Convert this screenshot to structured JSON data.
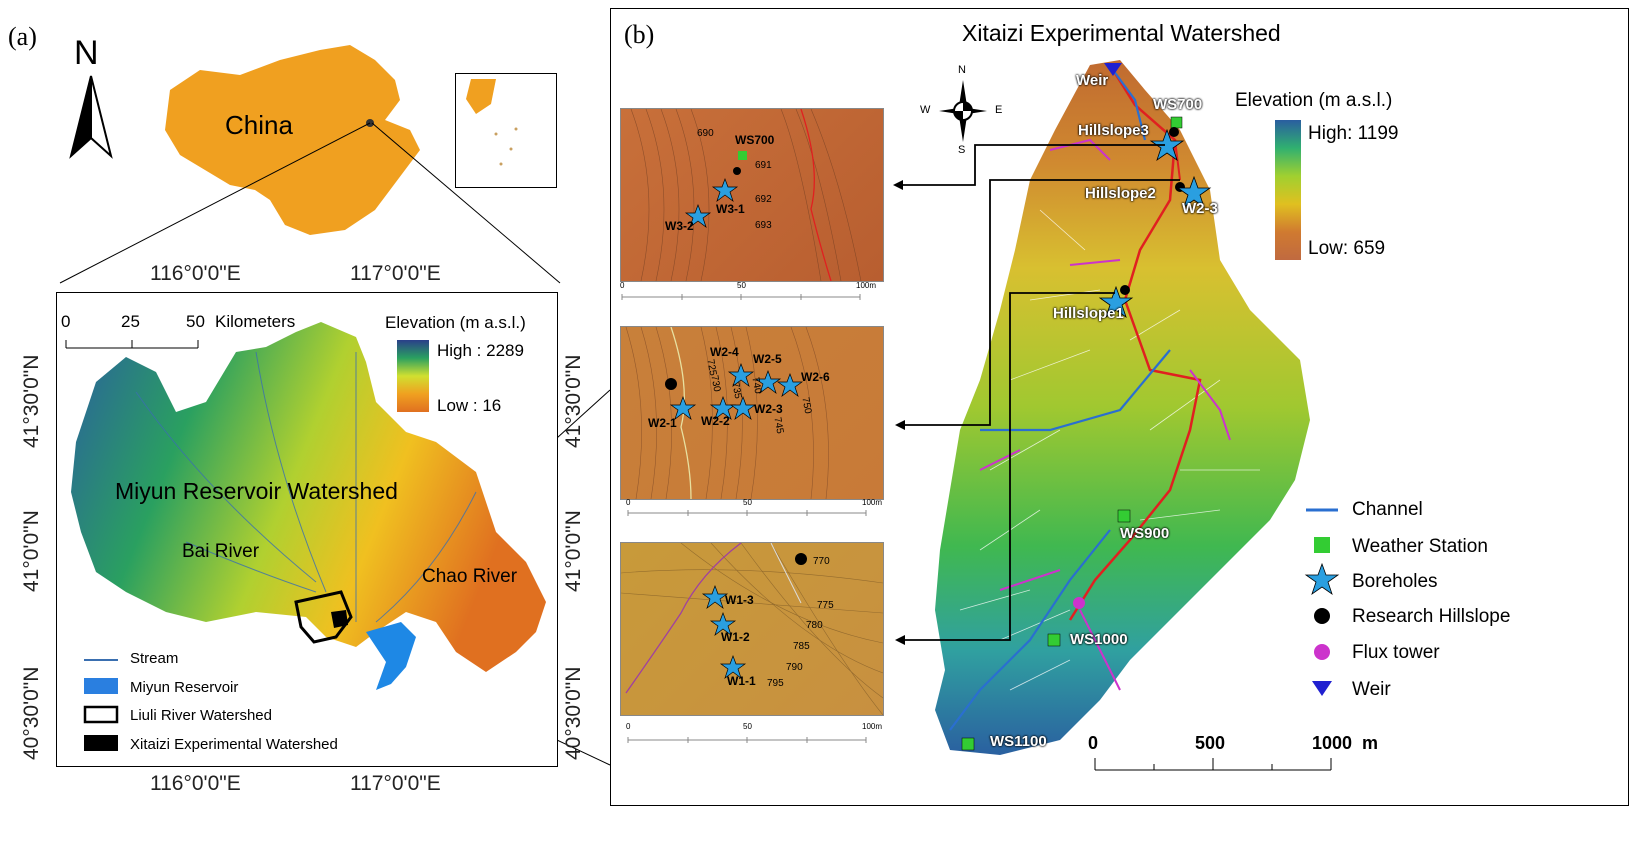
{
  "panel_a": {
    "label": "(a)",
    "north": "N",
    "country": "China",
    "lon_top": [
      "116°0'0\"E",
      "117°0'0\"E"
    ],
    "lon_bottom": [
      "116°0'0\"E",
      "117°0'0\"E"
    ],
    "lat_left": [
      "41°30'0\"N",
      "41°0'0\"N",
      "40°30'0\"N"
    ],
    "lat_right": [
      "41°30'0\"N",
      "41°0'0\"N",
      "40°30'0\"N"
    ],
    "scale_ticks": [
      "0",
      "25",
      "50"
    ],
    "scale_unit": "Kilometers",
    "elevation_title": "Elevation (m a.s.l.)",
    "elev_high": "High : 2289",
    "elev_low": "Low : 16",
    "watershed_name": "Miyun Reservoir Watershed",
    "bai": "Bai River",
    "chao": "Chao River",
    "legend": [
      "Stream",
      "Miyun Reservoir",
      "Liuli River Watershed",
      "Xitaizi Experimental Watershed"
    ]
  },
  "panel_b": {
    "label": "(b)",
    "title": "Xitaizi Experimental Watershed",
    "compass": {
      "n": "N",
      "s": "S",
      "e": "E",
      "w": "W"
    },
    "elevation_title": "Elevation (m a.s.l.)",
    "elev_high": "High: 1199",
    "elev_low": "Low: 659",
    "map_labels": {
      "weir": "Weir",
      "ws700": "WS700",
      "hill3": "Hillslope3",
      "hill2": "Hillslope2",
      "w23": "W2-3",
      "hill1": "Hillslope1",
      "ws900": "WS900",
      "ws1000": "WS1000",
      "ws1100": "WS1100"
    },
    "scale": {
      "t0": "0",
      "t1": "500",
      "t2": "1000",
      "unit": "m"
    },
    "legend": [
      "Channel",
      "Weather Station",
      "Boreholes",
      "Research Hillslope",
      "Flux tower",
      "Weir"
    ],
    "inset1": {
      "contours": [
        "690",
        "691",
        "692",
        "693"
      ],
      "labels": {
        "ws": "WS700",
        "w31": "W3-1",
        "w32": "W3-2"
      },
      "ticks": [
        "0",
        "50",
        "100m"
      ]
    },
    "inset2": {
      "contours": [
        "725",
        "730",
        "735",
        "740",
        "745",
        "750"
      ],
      "labels": {
        "w21": "W2-1",
        "w22": "W2-2",
        "w23": "W2-3",
        "w24": "W2-4",
        "w25": "W2-5",
        "w26": "W2-6"
      },
      "ticks": [
        "0",
        "50",
        "100m"
      ]
    },
    "inset3": {
      "contours": [
        "770",
        "775",
        "780",
        "785",
        "790",
        "795"
      ],
      "labels": {
        "w11": "W1-1",
        "w12": "W1-2",
        "w13": "W1-3"
      },
      "ticks": [
        "0",
        "50",
        "100m"
      ]
    }
  },
  "colors": {
    "china": "#f0a020",
    "stream": "#3a6fb0",
    "reservoir": "#2a7fe0",
    "channel": "#2a6fd0",
    "weather": "#33cc33",
    "borehole": "#2a9fe0",
    "flux": "#cc33cc",
    "weir": "#2020d0",
    "red_channel": "#e02020"
  }
}
